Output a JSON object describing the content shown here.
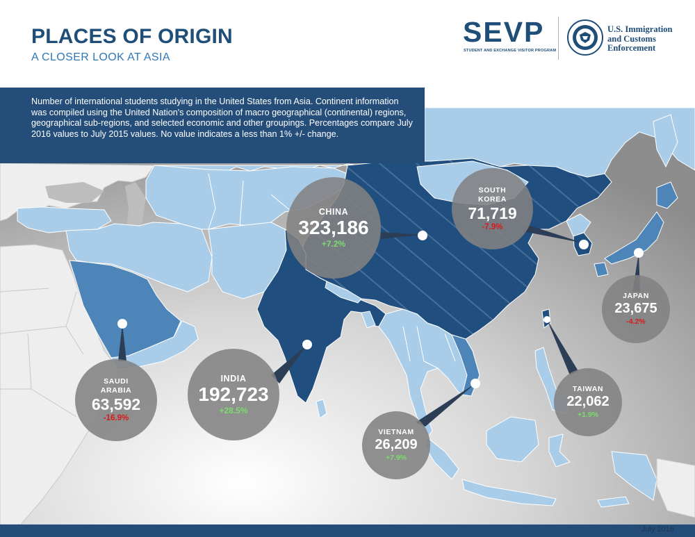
{
  "header": {
    "title": "PLACES OF ORIGIN",
    "subtitle": "A CLOSER LOOK AT ASIA"
  },
  "logos": {
    "sevp": "SEVP",
    "sevp_tagline": "STUDENT AND EXCHANGE VISITOR PROGRAM",
    "agency": "U.S. Immigration\nand Customs\nEnforcement",
    "seal_label": "dhs-seal-icon"
  },
  "intro": "Number of international students studying in the United States from Asia. Continent information was  compiled using the United Nation's composition of macro geographical (continental) regions,  geographical sub-regions, and selected economic and other groupings.  Percentages compare July 2016 values to July 2015 values. No value indicates a less than 1% +/- change.",
  "countries": [
    {
      "id": "china",
      "name": "CHINA",
      "count": "323,186",
      "change": "+7.2%",
      "direction": "up"
    },
    {
      "id": "south-korea",
      "name": "SOUTH\nKOREA",
      "count": "71,719",
      "change": "-7.9%",
      "direction": "down"
    },
    {
      "id": "india",
      "name": "INDIA",
      "count": "192,723",
      "change": "+28.5%",
      "direction": "up"
    },
    {
      "id": "saudi-arabia",
      "name": "SAUDI\nARABIA",
      "count": "63,592",
      "change": "-16.9%",
      "direction": "down"
    },
    {
      "id": "japan",
      "name": "JAPAN",
      "count": "23,675",
      "change": "-4.2%",
      "direction": "down"
    },
    {
      "id": "taiwan",
      "name": "TAIWAN",
      "count": "22,062",
      "change": "+1.9%",
      "direction": "up"
    },
    {
      "id": "vietnam",
      "name": "VIETNAM",
      "count": "26,209",
      "change": "+7.9%",
      "direction": "up"
    }
  ],
  "colors": {
    "brand_navy": "#244e79",
    "title_blue": "#1f4e79",
    "subtitle_blue": "#2e77b8",
    "highlight_country": "#1f4e7f",
    "mid_country": "#4d85b8",
    "light_country": "#a9cde9",
    "other_land": "#eeeeee",
    "ocean": "#c4c4c4",
    "bubble": "#828282",
    "increase": "#7ddb6f",
    "decrease": "#d81a1a"
  },
  "footer": {
    "date": "July 2016"
  }
}
